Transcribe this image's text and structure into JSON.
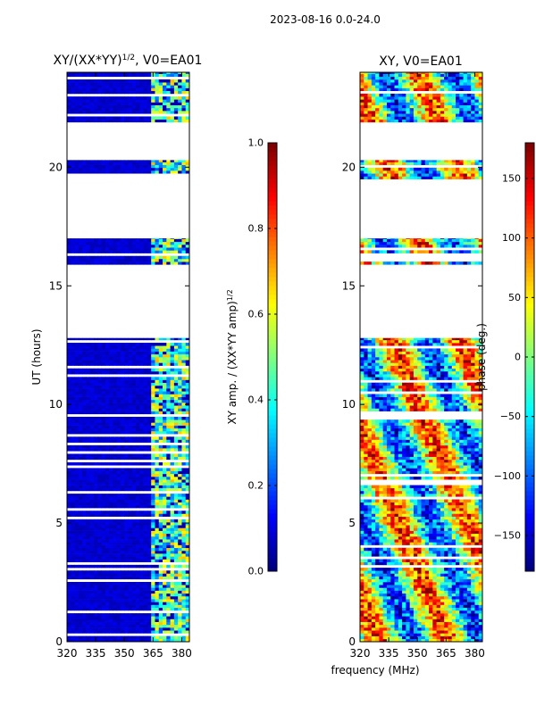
{
  "suptitle": "2023-08-16 0.0-24.0",
  "xlabel_shared": "frequency (MHz)",
  "colors": {
    "jet": [
      "#00007f",
      "#0000ff",
      "#007fff",
      "#00ffff",
      "#7fff7f",
      "#ffff00",
      "#ff7f00",
      "#ff0000",
      "#7f0000"
    ],
    "background": "#ffffff"
  },
  "chart_data": [
    {
      "type": "heatmap",
      "title_main": "XY/(XX*YY)",
      "title_sup": "1/2",
      "title_tail": ", V0=EA01",
      "xlabel": "",
      "ylabel": "UT (hours)",
      "xlim": [
        320,
        384
      ],
      "ylim": [
        0,
        24
      ],
      "xticks": [
        320,
        335,
        350,
        365,
        380
      ],
      "yticks": [
        0,
        5,
        10,
        15,
        20
      ],
      "colorbar": {
        "label_main": "XY amp. / (XX*YY amp)",
        "label_sup": "1/2",
        "range": [
          0.0,
          1.0
        ],
        "ticks": [
          "0.0",
          "0.2",
          "0.4",
          "0.6",
          "0.8",
          "1.0"
        ],
        "tick_values": [
          0.0,
          0.2,
          0.4,
          0.6,
          0.8,
          1.0
        ]
      },
      "data_blocks_ut": [
        [
          0,
          12.8
        ],
        [
          15.9,
          17.0
        ],
        [
          19.5,
          20.3
        ],
        [
          21.9,
          24.0
        ]
      ],
      "bright_band_mhz": [
        363,
        384
      ],
      "typical_values": {
        "low_band": 0.05,
        "high_band": 0.45
      }
    },
    {
      "type": "heatmap",
      "title_main": "XY, V0=EA01",
      "xlabel": "frequency (MHz)",
      "ylabel": "",
      "xlim": [
        320,
        384
      ],
      "ylim": [
        0,
        24
      ],
      "xticks": [
        320,
        335,
        350,
        365,
        380
      ],
      "yticks": [
        0,
        5,
        10,
        15,
        20
      ],
      "colorbar": {
        "label_main": "phase (deg.)",
        "range": [
          -180,
          180
        ],
        "ticks": [
          "150",
          "100",
          "50",
          "0",
          "−50",
          "−100",
          "−150"
        ],
        "tick_values": [
          150,
          100,
          50,
          0,
          -50,
          -100,
          -150
        ]
      },
      "data_blocks_ut": [
        [
          0,
          12.8
        ],
        [
          15.9,
          17.0
        ],
        [
          19.5,
          20.3
        ],
        [
          21.9,
          24.0
        ]
      ]
    }
  ]
}
